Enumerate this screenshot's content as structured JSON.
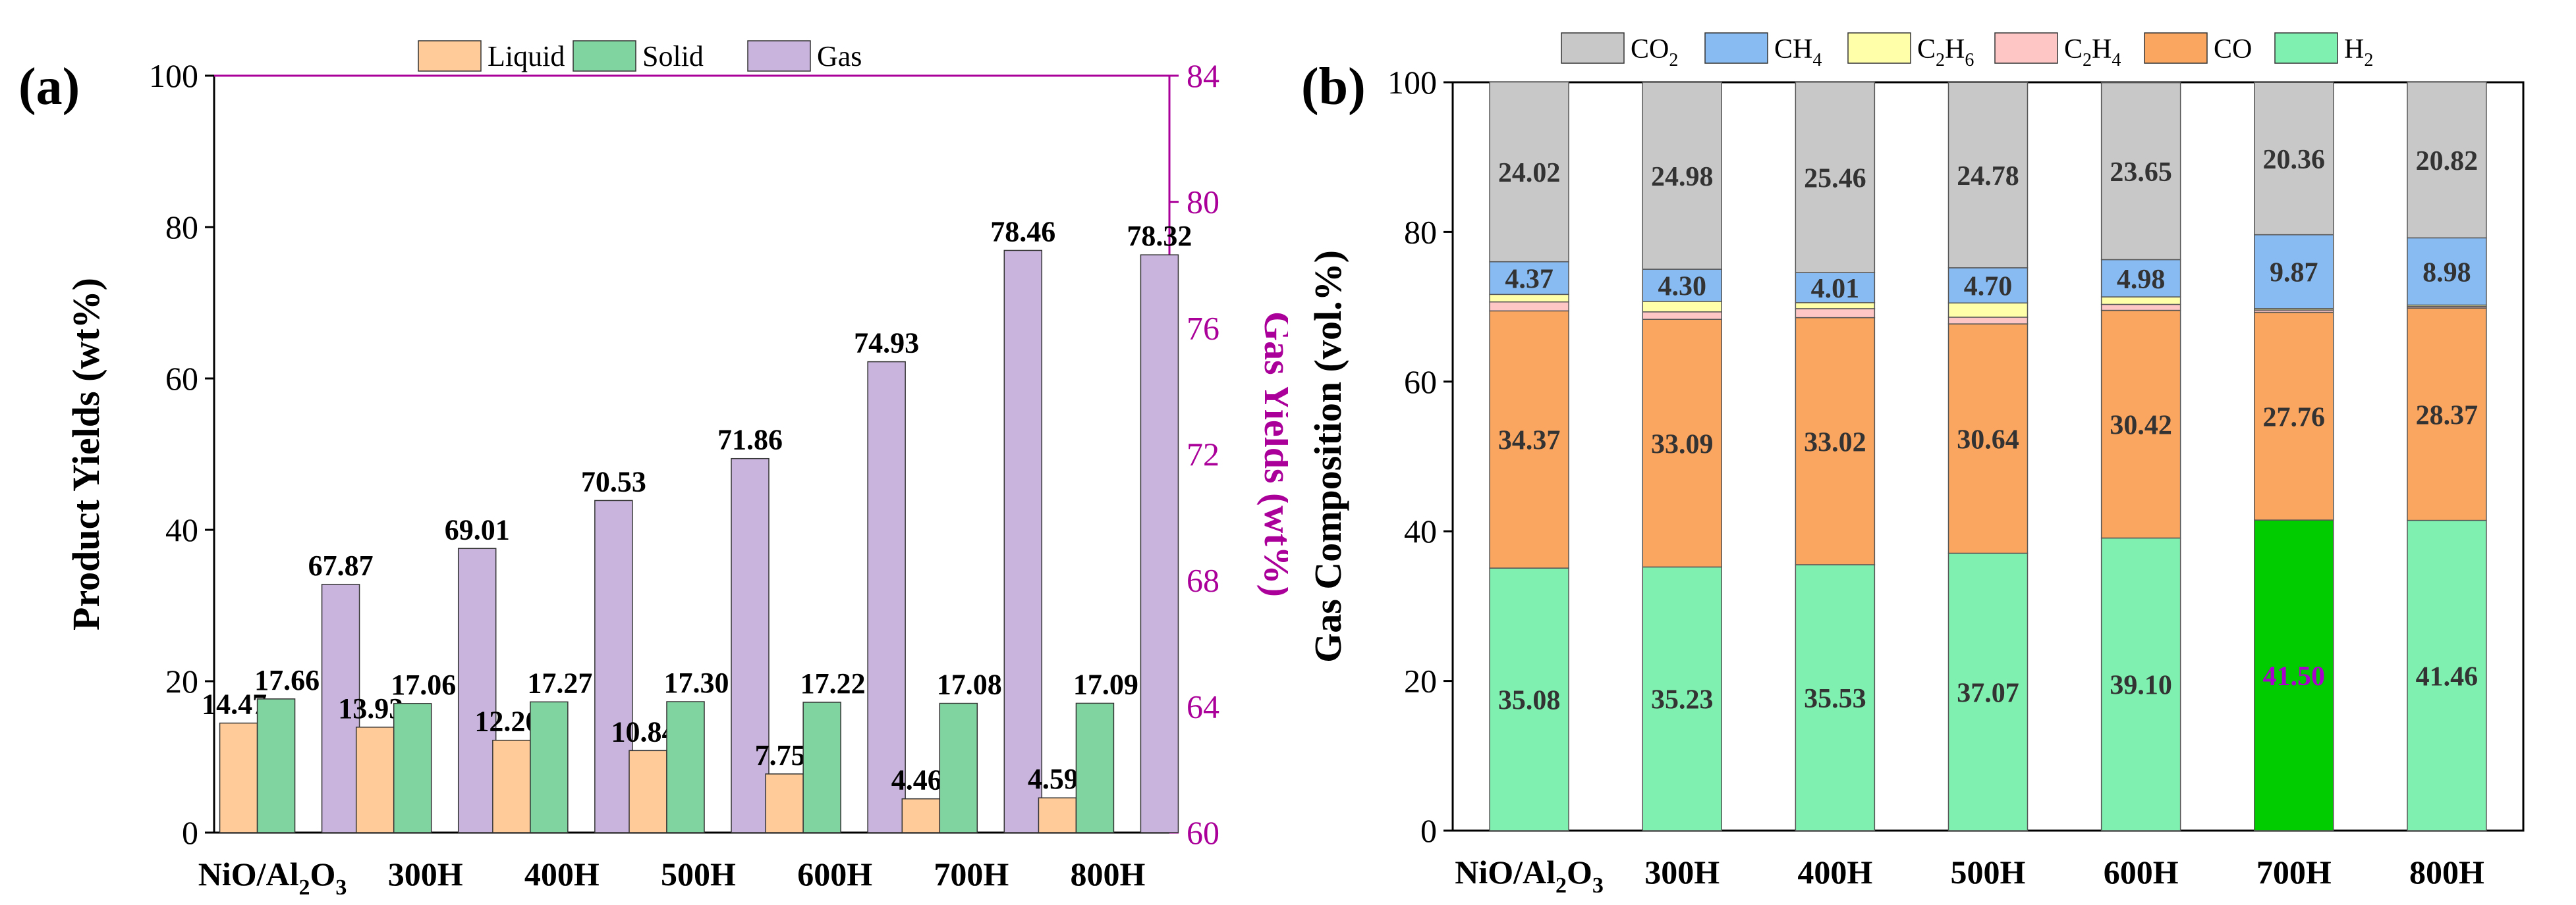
{
  "chart_data": [
    {
      "type": "bar",
      "panel_label": "(a)",
      "categories": [
        "NiO/Al",
        "300H",
        "400H",
        "500H",
        "600H",
        "700H",
        "800H"
      ],
      "category_first_parts": {
        "base": "NiO/Al",
        "sub1": "2",
        "mid": "O",
        "sub2": "3"
      },
      "ylabel": "Product Yields (wt%)",
      "y2label": "Gas Yields (wt%)",
      "ylim": [
        0,
        100
      ],
      "y2lim": [
        60,
        84
      ],
      "yticks": [
        "0",
        "20",
        "40",
        "60",
        "80",
        "100"
      ],
      "y2ticks": [
        "60",
        "64",
        "68",
        "72",
        "76",
        "80",
        "84"
      ],
      "series": [
        {
          "name": "Liquid",
          "axis": "left",
          "color": "#FFCC99",
          "values": [
            14.47,
            13.93,
            12.2,
            10.84,
            7.75,
            4.46,
            4.59
          ],
          "labels": [
            "14.47",
            "13.93",
            "12.20",
            "10.84",
            "7.75",
            "4.46",
            "4.59"
          ]
        },
        {
          "name": "Solid",
          "axis": "left",
          "color": "#80D4A0",
          "values": [
            17.66,
            17.06,
            17.27,
            17.3,
            17.22,
            17.08,
            17.09
          ],
          "labels": [
            "17.66",
            "17.06",
            "17.27",
            "17.30",
            "17.22",
            "17.08",
            "17.09"
          ]
        },
        {
          "name": "Gas",
          "axis": "right",
          "color": "#C8B4DC",
          "values": [
            67.87,
            69.01,
            70.53,
            71.86,
            74.93,
            78.46,
            78.32
          ],
          "labels": [
            "67.87",
            "69.01",
            "70.53",
            "71.86",
            "74.93",
            "78.46",
            "78.32"
          ]
        }
      ],
      "legend": [
        "Liquid",
        "Solid",
        "Gas"
      ],
      "right_axis_color": "#AA0099"
    },
    {
      "type": "bar",
      "stacked": true,
      "panel_label": "(b)",
      "categories": [
        "NiO/Al",
        "300H",
        "400H",
        "500H",
        "600H",
        "700H",
        "800H"
      ],
      "ylabel": "Gas Composition (vol.%)",
      "ylim": [
        0,
        100
      ],
      "yticks": [
        "0",
        "20",
        "40",
        "60",
        "80",
        "100"
      ],
      "series": [
        {
          "name": "H2",
          "color": "#80F0B0",
          "values": [
            35.08,
            35.23,
            35.53,
            37.07,
            39.1,
            41.5,
            41.46
          ],
          "labels": [
            "35.08",
            "35.23",
            "35.53",
            "37.07",
            "39.10",
            "41.50",
            "41.46"
          ]
        },
        {
          "name": "CO",
          "color": "#FAA560",
          "values": [
            34.37,
            33.09,
            33.02,
            30.64,
            30.42,
            27.76,
            28.37
          ],
          "labels": [
            "34.37",
            "33.09",
            "33.02",
            "30.64",
            "30.42",
            "27.76",
            "28.37"
          ]
        },
        {
          "name": "C2H4",
          "color": "#FFC6C6",
          "values": [
            1.2,
            1.0,
            1.2,
            0.9,
            0.8,
            0.3,
            0.2
          ],
          "labels": []
        },
        {
          "name": "C2H6",
          "color": "#FFFFAA",
          "values": [
            1.0,
            1.4,
            0.8,
            1.9,
            1.0,
            0.2,
            0.2
          ],
          "labels": []
        },
        {
          "name": "CH4",
          "color": "#88BBF2",
          "values": [
            4.37,
            4.3,
            4.01,
            4.7,
            4.98,
            9.87,
            8.98
          ],
          "labels": [
            "4.37",
            "4.30",
            "4.01",
            "4.70",
            "4.98",
            "9.87",
            "8.98"
          ]
        },
        {
          "name": "CO2",
          "color": "#C8C8C8",
          "values": [
            24.02,
            24.98,
            25.46,
            24.78,
            23.65,
            20.36,
            20.82
          ],
          "labels": [
            "24.02",
            "24.98",
            "25.46",
            "24.78",
            "23.65",
            "20.36",
            "20.82"
          ]
        }
      ],
      "legend": [
        {
          "base": "CO",
          "sub": "2",
          "color": "#C8C8C8"
        },
        {
          "base": "CH",
          "sub": "4",
          "color": "#88BBF2"
        },
        {
          "base": "C",
          "sub": "2",
          "mid": "H",
          "sub2": "6",
          "color": "#FFFFAA"
        },
        {
          "base": "C",
          "sub": "2",
          "mid": "H",
          "sub2": "4",
          "color": "#FFC6C6"
        },
        {
          "base": "CO",
          "sub": "",
          "color": "#FAA560"
        },
        {
          "base": "H",
          "sub": "2",
          "color": "#80F0B0"
        }
      ],
      "highlight": {
        "category_index": 5,
        "series": "H2",
        "color": "#00CC00",
        "label_color": "#AA00CC"
      }
    }
  ]
}
